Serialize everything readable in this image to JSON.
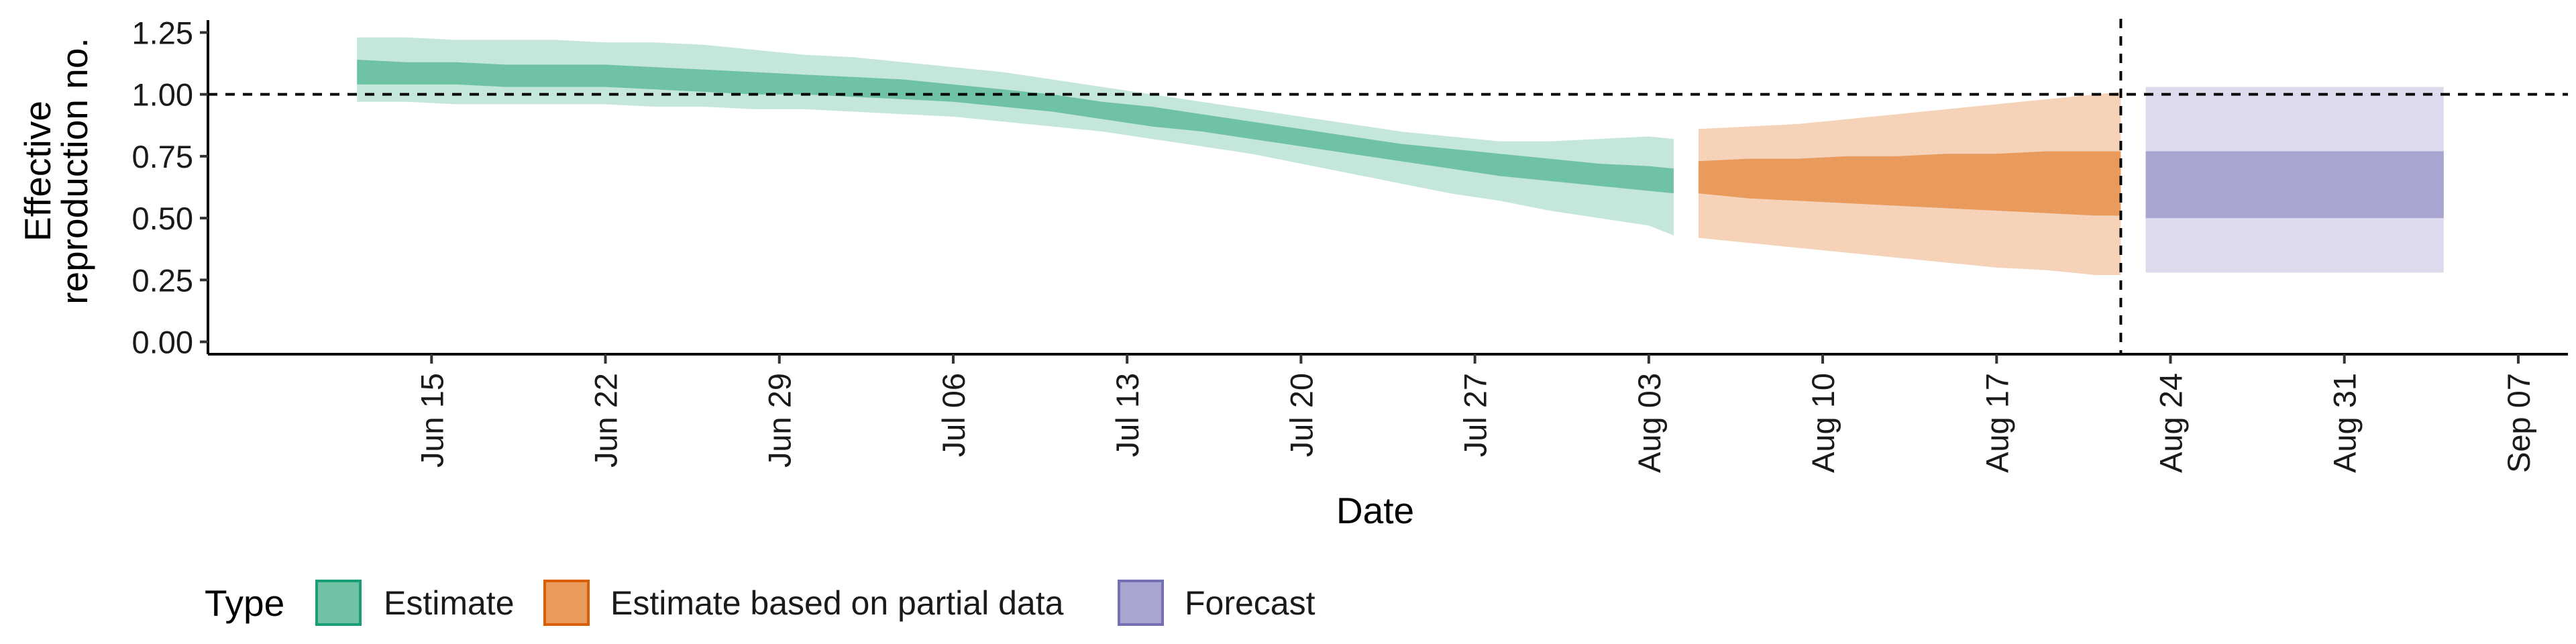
{
  "chart_data": {
    "type": "area",
    "xlabel": "Date",
    "ylabel_lines": [
      "Effective",
      "reproduction no."
    ],
    "ylim": [
      -0.05,
      1.3
    ],
    "yticks": [
      0.0,
      0.25,
      0.5,
      0.75,
      1.0,
      1.25
    ],
    "ytick_labels": [
      "0.00",
      "0.25",
      "0.50",
      "0.75",
      "1.00",
      "1.25"
    ],
    "xlim": [
      "2020-06-06",
      "2020-09-09"
    ],
    "xticks": [
      "2020-06-15",
      "2020-06-22",
      "2020-06-29",
      "2020-07-06",
      "2020-07-13",
      "2020-07-20",
      "2020-07-27",
      "2020-08-03",
      "2020-08-10",
      "2020-08-17",
      "2020-08-24",
      "2020-08-31",
      "2020-09-07"
    ],
    "xtick_labels": [
      "Jun 15",
      "Jun 22",
      "Jun 29",
      "Jul 06",
      "Jul 13",
      "Jul 20",
      "Jul 27",
      "Aug 03",
      "Aug 10",
      "Aug 17",
      "Aug 24",
      "Aug 31",
      "Sep 07"
    ],
    "reference_line_y": 1.0,
    "forecast_date_line": "2020-08-22",
    "legend": {
      "title": "Type",
      "placement": "bottom-left",
      "entries": [
        {
          "label": "Estimate",
          "fill": "#6fc3a4",
          "border": "#1b9e77"
        },
        {
          "label": "Estimate based on partial data",
          "fill": "#e99a5d",
          "border": "#d95f02"
        },
        {
          "label": "Forecast",
          "fill": "#a8a5d1",
          "border": "#7570b3"
        }
      ]
    },
    "series": [
      {
        "name": "Estimate",
        "color_outer": "#c5e7da",
        "color_inner": "#6fc3a4",
        "x": [
          "2020-06-12",
          "2020-06-14",
          "2020-06-16",
          "2020-06-18",
          "2020-06-20",
          "2020-06-22",
          "2020-06-24",
          "2020-06-26",
          "2020-06-28",
          "2020-06-30",
          "2020-07-02",
          "2020-07-04",
          "2020-07-06",
          "2020-07-08",
          "2020-07-10",
          "2020-07-12",
          "2020-07-14",
          "2020-07-16",
          "2020-07-18",
          "2020-07-20",
          "2020-07-22",
          "2020-07-24",
          "2020-07-26",
          "2020-07-28",
          "2020-07-30",
          "2020-08-01",
          "2020-08-03",
          "2020-08-04"
        ],
        "lower_outer": [
          0.97,
          0.97,
          0.96,
          0.96,
          0.96,
          0.96,
          0.95,
          0.95,
          0.94,
          0.94,
          0.93,
          0.92,
          0.91,
          0.89,
          0.87,
          0.85,
          0.82,
          0.79,
          0.76,
          0.72,
          0.68,
          0.64,
          0.6,
          0.57,
          0.53,
          0.5,
          0.47,
          0.43
        ],
        "lower_inner": [
          1.04,
          1.04,
          1.04,
          1.03,
          1.03,
          1.03,
          1.02,
          1.01,
          1.0,
          1.0,
          0.99,
          0.98,
          0.97,
          0.95,
          0.93,
          0.9,
          0.87,
          0.85,
          0.82,
          0.79,
          0.76,
          0.73,
          0.7,
          0.67,
          0.65,
          0.63,
          0.61,
          0.6
        ],
        "upper_inner": [
          1.14,
          1.13,
          1.13,
          1.12,
          1.12,
          1.12,
          1.11,
          1.1,
          1.09,
          1.08,
          1.07,
          1.06,
          1.04,
          1.02,
          1.0,
          0.97,
          0.95,
          0.92,
          0.89,
          0.86,
          0.83,
          0.8,
          0.78,
          0.76,
          0.74,
          0.72,
          0.71,
          0.7
        ],
        "upper_outer": [
          1.23,
          1.23,
          1.22,
          1.22,
          1.22,
          1.21,
          1.21,
          1.2,
          1.18,
          1.16,
          1.15,
          1.13,
          1.11,
          1.09,
          1.06,
          1.03,
          1.0,
          0.97,
          0.94,
          0.91,
          0.88,
          0.85,
          0.83,
          0.81,
          0.81,
          0.82,
          0.83,
          0.82
        ]
      },
      {
        "name": "Estimate based on partial data",
        "color_outer": "#f5d2b8",
        "color_inner": "#e99a5d",
        "x": [
          "2020-08-05",
          "2020-08-07",
          "2020-08-09",
          "2020-08-11",
          "2020-08-13",
          "2020-08-15",
          "2020-08-17",
          "2020-08-19",
          "2020-08-21",
          "2020-08-22"
        ],
        "lower_outer": [
          0.42,
          0.4,
          0.38,
          0.36,
          0.34,
          0.32,
          0.3,
          0.29,
          0.27,
          0.27
        ],
        "lower_inner": [
          0.6,
          0.58,
          0.57,
          0.56,
          0.55,
          0.54,
          0.53,
          0.52,
          0.51,
          0.51
        ],
        "upper_inner": [
          0.73,
          0.74,
          0.74,
          0.75,
          0.75,
          0.76,
          0.76,
          0.77,
          0.77,
          0.77
        ],
        "upper_outer": [
          0.86,
          0.87,
          0.88,
          0.9,
          0.92,
          0.94,
          0.96,
          0.98,
          1.0,
          1.01
        ]
      },
      {
        "name": "Forecast",
        "color_outer": "#dcdbed",
        "color_inner": "#a8a5d1",
        "x": [
          "2020-08-23",
          "2020-09-04"
        ],
        "lower_outer": [
          0.28,
          0.28
        ],
        "lower_inner": [
          0.5,
          0.5
        ],
        "upper_inner": [
          0.77,
          0.77
        ],
        "upper_outer": [
          1.03,
          1.03
        ]
      }
    ]
  }
}
